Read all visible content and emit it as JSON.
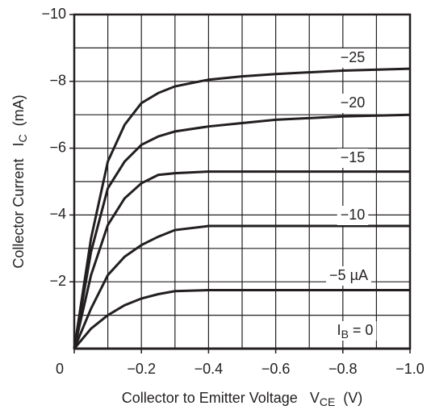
{
  "chart_data": {
    "type": "line",
    "x_label": {
      "text": "Collector to Emitter Voltage   V",
      "subscript": "CE",
      "suffix": "  (V)"
    },
    "y_label": {
      "text": "Collector Current   I",
      "subscript": "C",
      "suffix": "  (mA)"
    },
    "x": [
      0,
      -0.05,
      -0.1,
      -0.15,
      -0.2,
      -0.25,
      -0.3,
      -0.4,
      -0.5,
      -0.6,
      -0.8,
      -1.0
    ],
    "series": [
      {
        "name": "−25",
        "color": "#231f20",
        "values": [
          0,
          -3.3,
          -5.6,
          -6.7,
          -7.35,
          -7.65,
          -7.85,
          -8.05,
          -8.15,
          -8.22,
          -8.32,
          -8.38
        ]
      },
      {
        "name": "−20",
        "color": "#231f20",
        "values": [
          0,
          -2.9,
          -4.8,
          -5.6,
          -6.1,
          -6.35,
          -6.5,
          -6.65,
          -6.75,
          -6.85,
          -6.95,
          -7.0
        ]
      },
      {
        "name": "−15",
        "color": "#231f20",
        "values": [
          0,
          -2.2,
          -3.7,
          -4.5,
          -4.95,
          -5.2,
          -5.25,
          -5.3,
          -5.3,
          -5.3,
          -5.3,
          -5.3
        ]
      },
      {
        "name": "−10",
        "color": "#231f20",
        "values": [
          0,
          -1.2,
          -2.2,
          -2.75,
          -3.1,
          -3.35,
          -3.55,
          -3.67,
          -3.67,
          -3.67,
          -3.67,
          -3.67
        ]
      },
      {
        "name": "−5 µA",
        "color": "#231f20",
        "values": [
          0,
          -0.6,
          -1.0,
          -1.3,
          -1.5,
          -1.63,
          -1.72,
          -1.75,
          -1.75,
          -1.75,
          -1.75,
          -1.75
        ]
      },
      {
        "name": "I",
        "subscript": "B",
        "suffix": " = 0",
        "color": "#231f20",
        "values": [
          0,
          0,
          0,
          0,
          0,
          0,
          0,
          0,
          0,
          0,
          0,
          0
        ]
      }
    ],
    "xlim": [
      0,
      -1.0
    ],
    "ylim": [
      0,
      -10
    ],
    "xticks": [
      0,
      {
        "value": -0.2,
        "label": "−0.2"
      },
      {
        "value": -0.4,
        "label": "−0.4"
      },
      {
        "value": -0.6,
        "label": "−0.6"
      },
      {
        "value": -0.8,
        "label": "−0.8"
      },
      {
        "value": -1.0,
        "label": "−1.0"
      }
    ],
    "yticks": [
      {
        "value": -2,
        "label": "−2"
      },
      {
        "value": -4,
        "label": "−4"
      },
      {
        "value": -6,
        "label": "−6"
      },
      {
        "value": -8,
        "label": "−8"
      },
      {
        "value": -10,
        "label": "−10"
      }
    ],
    "grid_step_x": -0.1,
    "grid_step_y": -1,
    "grid": true
  }
}
